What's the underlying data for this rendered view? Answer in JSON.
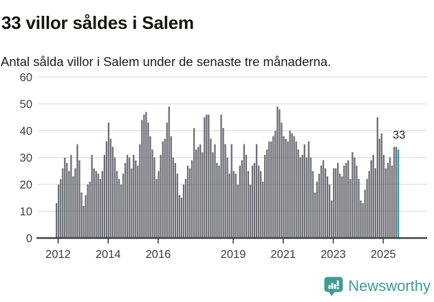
{
  "header": {
    "title": "33 villor såldes i Salem",
    "subtitle": "Antal sålda villor i Salem under de senaste tre månaderna."
  },
  "chart_data": {
    "type": "bar",
    "title": "33 villor såldes i Salem",
    "xlabel": "",
    "ylabel": "",
    "x_start": "2011-12",
    "frequency": "monthly",
    "values": [
      13,
      20,
      22,
      26,
      30,
      28,
      25,
      31,
      23,
      26,
      35,
      29,
      17,
      12,
      16,
      20,
      21,
      31,
      26,
      25,
      24,
      22,
      25,
      31,
      36,
      43,
      37,
      34,
      30,
      25,
      22,
      20,
      24,
      28,
      31,
      30,
      26,
      31,
      29,
      27,
      35,
      44,
      46,
      47,
      43,
      38,
      33,
      30,
      22,
      25,
      31,
      36,
      37,
      43,
      49,
      38,
      30,
      28,
      24,
      16,
      15,
      20,
      22,
      27,
      26,
      29,
      41,
      33,
      34,
      35,
      32,
      45,
      46,
      46,
      37,
      32,
      35,
      28,
      27,
      46,
      41,
      35,
      30,
      24,
      35,
      25,
      24,
      20,
      27,
      29,
      35,
      31,
      25,
      20,
      27,
      28,
      35,
      27,
      25,
      21,
      31,
      33,
      36,
      36,
      38,
      40,
      49,
      48,
      43,
      38,
      37,
      36,
      40,
      39,
      38,
      36,
      33,
      30,
      31,
      35,
      30,
      36,
      30,
      25,
      17,
      21,
      24,
      27,
      29,
      26,
      23,
      20,
      14,
      26,
      26,
      28,
      24,
      23,
      27,
      28,
      29,
      22,
      32,
      30,
      27,
      22,
      14,
      13,
      18,
      22,
      25,
      29,
      31,
      26,
      45,
      37,
      39,
      31,
      26,
      28,
      30,
      27,
      34,
      34,
      33
    ],
    "highlight_last_value": 33,
    "annotation": {
      "text": "33"
    },
    "ylim": [
      0,
      60
    ],
    "yticks": [
      0,
      10,
      20,
      30,
      40,
      50,
      60
    ],
    "xtick_years": [
      2012,
      2014,
      2016,
      2019,
      2021,
      2023,
      2025
    ],
    "grid": true,
    "legend": false
  },
  "footer": {
    "brand": "Newsworthy"
  },
  "colors": {
    "bar": "#6d6d75",
    "highlight": "#2a9c9e",
    "brand": "#3f9c94",
    "grid": "#dedede",
    "axis": "#404040",
    "tick_text": "#3c3c3c",
    "annotation_text": "#262626"
  }
}
